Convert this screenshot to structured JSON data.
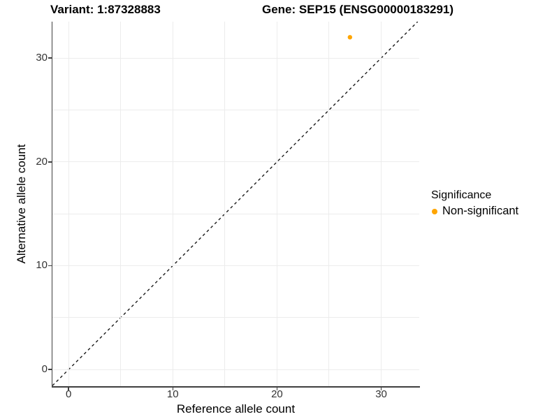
{
  "header": {
    "variant_title": "Variant: 1:87328883",
    "gene_title": "Gene: SEP15 (ENSG00000183291)"
  },
  "chart_data": {
    "type": "scatter",
    "title": "Variant: 1:87328883  Gene: SEP15 (ENSG00000183291)",
    "xlabel": "Reference allele count",
    "ylabel": "Alternative allele count",
    "xlim": [
      -1.55,
      33.65
    ],
    "ylim": [
      -1.6,
      33.5
    ],
    "x_ticks": [
      0,
      10,
      20,
      30
    ],
    "y_ticks": [
      0,
      10,
      20,
      30
    ],
    "x_minor_ticks": [
      5,
      15,
      25
    ],
    "y_minor_ticks": [
      5,
      15,
      25
    ],
    "grid": true,
    "legend_position": "right",
    "reference_line": {
      "kind": "identity",
      "slope": 1,
      "intercept": 0,
      "style": "dashed",
      "color": "#1a1a1a"
    },
    "series": [
      {
        "name": "Non-significant",
        "color": "#FFA500",
        "points": [
          {
            "x": 27,
            "y": 32
          }
        ]
      }
    ],
    "legend": {
      "title": "Significance",
      "entries": [
        {
          "label": "Non-significant",
          "color": "#FFA500"
        }
      ]
    }
  },
  "colors": {
    "background": "#FFFFFF",
    "axis_line": "#3F3F3F",
    "tick_label": "#333333",
    "gridline": "#ECECEC",
    "point": "#FFA500"
  }
}
